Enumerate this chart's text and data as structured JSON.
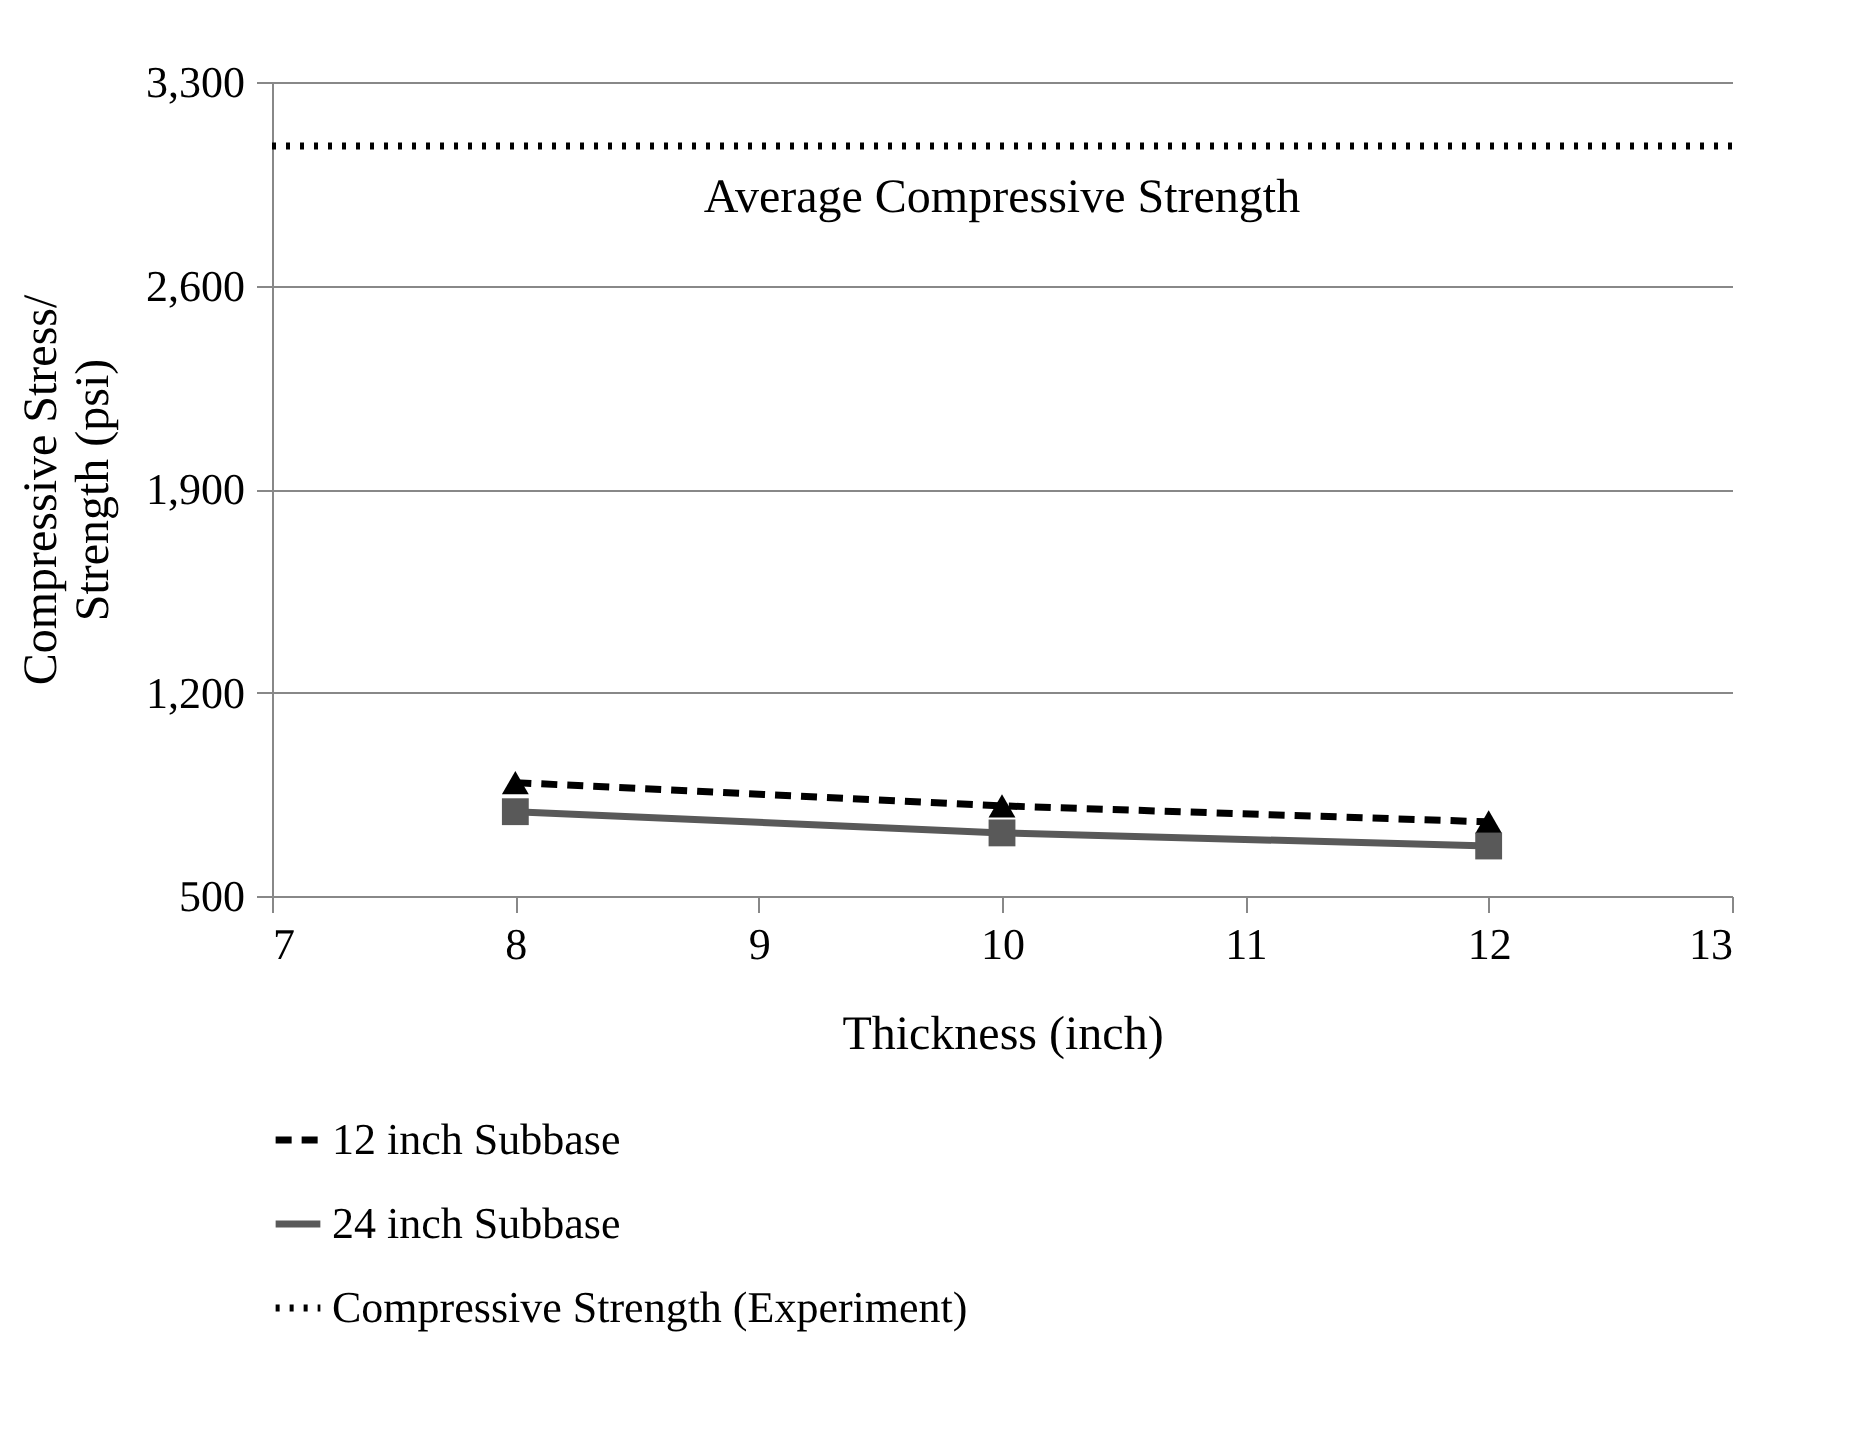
{
  "chart_data": {
    "type": "line",
    "xlabel": "Thickness (inch)",
    "ylabel": "Compressive Stress/\nStrength (psi)",
    "x": [
      8,
      10,
      12
    ],
    "series": [
      {
        "name": "12 inch Subbase",
        "color": "#000000",
        "values": [
          890,
          810,
          755
        ],
        "marker": "triangle",
        "line_style": "dashed"
      },
      {
        "name": "24 inch Subbase",
        "color": "#595959",
        "values": [
          790,
          717,
          672
        ],
        "marker": "square",
        "line_style": "solid"
      },
      {
        "name": "Compressive Strength (Experiment)",
        "color": "#000000",
        "x": [
          7,
          13
        ],
        "values": [
          3080,
          3080
        ],
        "marker": "none",
        "line_style": "dotted"
      }
    ],
    "annotations": [
      "Average Compressive Strength"
    ],
    "xlim": [
      7,
      13
    ],
    "xticks": [
      7,
      8,
      9,
      10,
      11,
      12,
      13
    ],
    "ylim": [
      500,
      3300
    ],
    "yticks": [
      500,
      {
        "value": 1200,
        "label": "1,200"
      },
      {
        "value": 1900,
        "label": "1,900"
      },
      {
        "value": 2600,
        "label": "2,600"
      },
      {
        "value": 3300,
        "label": "3,300"
      }
    ],
    "grid": "y",
    "legend": "bottom"
  }
}
